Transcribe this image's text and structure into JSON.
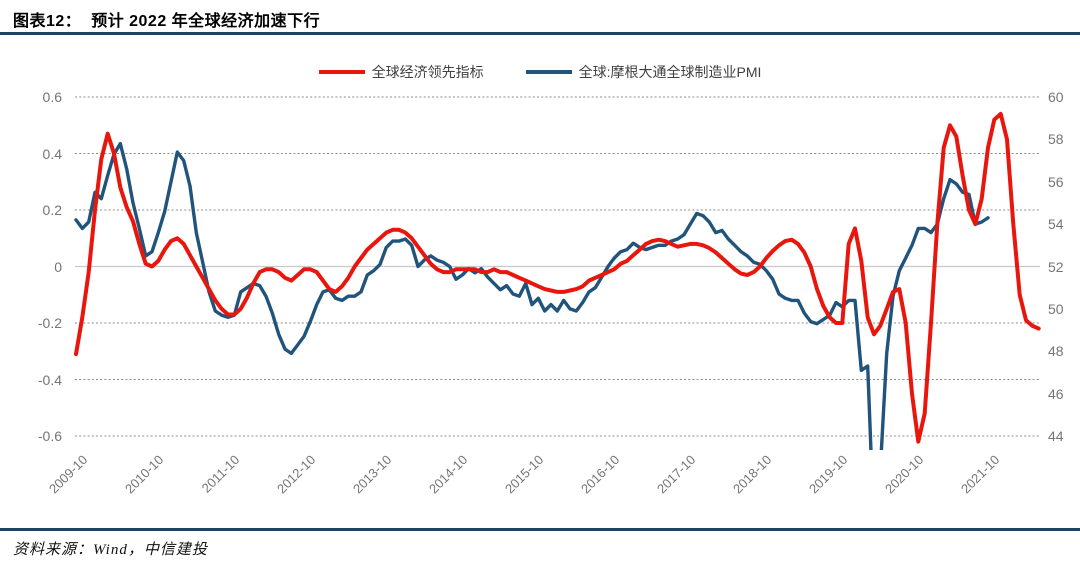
{
  "header": {
    "title": "图表12：  预计 2022 年全球经济加速下行"
  },
  "footer": {
    "source": "资料来源：Wind，中信建投"
  },
  "colors": {
    "rule_navy": "#1d4466",
    "red_series": "#e8160d",
    "blue_series": "#20547c",
    "grid_dashed": "#8c8c8c",
    "zero_line": "#c9c9c9",
    "tick_text": "#757575"
  },
  "chart_data": {
    "type": "line",
    "title": "预计 2022 年全球经济加速下行",
    "x_start": "2009-10",
    "x_frequency": "monthly",
    "x_tick_labels": [
      "2009-10",
      "2010-10",
      "2011-10",
      "2012-10",
      "2013-10",
      "2014-10",
      "2015-10",
      "2016-10",
      "2017-10",
      "2018-10",
      "2019-10",
      "2020-10",
      "2021-10"
    ],
    "left_axis": {
      "min": -0.6,
      "max": 0.6,
      "tick_labels": [
        "0.6",
        "0.4",
        "0.2",
        "0",
        "-0.2",
        "-0.4",
        "-0.6"
      ]
    },
    "right_axis": {
      "min": 44,
      "max": 60,
      "tick_labels": [
        "60",
        "58",
        "56",
        "54",
        "52",
        "50",
        "48",
        "46",
        "44"
      ]
    },
    "grid": "horizontal dashed, zero line solid",
    "legend_position": "top-center",
    "series": [
      {
        "name": "全球经济领先指标",
        "axis": "left",
        "color": "#e8160d",
        "values": [
          -0.31,
          -0.18,
          -0.02,
          0.2,
          0.38,
          0.47,
          0.4,
          0.28,
          0.21,
          0.16,
          0.08,
          0.01,
          0.0,
          0.02,
          0.06,
          0.09,
          0.1,
          0.08,
          0.04,
          0.0,
          -0.04,
          -0.08,
          -0.12,
          -0.15,
          -0.17,
          -0.17,
          -0.15,
          -0.11,
          -0.06,
          -0.02,
          -0.01,
          -0.01,
          -0.02,
          -0.04,
          -0.05,
          -0.03,
          -0.01,
          -0.01,
          -0.02,
          -0.05,
          -0.08,
          -0.09,
          -0.07,
          -0.04,
          0.0,
          0.03,
          0.06,
          0.08,
          0.1,
          0.12,
          0.13,
          0.13,
          0.12,
          0.1,
          0.07,
          0.04,
          0.01,
          -0.01,
          -0.02,
          -0.02,
          -0.01,
          -0.01,
          -0.01,
          -0.01,
          -0.02,
          -0.02,
          -0.01,
          -0.02,
          -0.02,
          -0.03,
          -0.04,
          -0.05,
          -0.06,
          -0.07,
          -0.08,
          -0.085,
          -0.09,
          -0.09,
          -0.085,
          -0.08,
          -0.07,
          -0.05,
          -0.04,
          -0.03,
          -0.02,
          -0.01,
          0.01,
          0.02,
          0.04,
          0.06,
          0.08,
          0.09,
          0.095,
          0.09,
          0.08,
          0.07,
          0.075,
          0.08,
          0.08,
          0.075,
          0.065,
          0.05,
          0.03,
          0.01,
          -0.01,
          -0.025,
          -0.03,
          -0.02,
          0.0,
          0.03,
          0.055,
          0.075,
          0.09,
          0.095,
          0.08,
          0.05,
          0.0,
          -0.08,
          -0.14,
          -0.18,
          -0.2,
          -0.2,
          0.08,
          0.135,
          0.02,
          -0.18,
          -0.24,
          -0.21,
          -0.15,
          -0.09,
          -0.08,
          -0.2,
          -0.45,
          -0.62,
          -0.52,
          -0.2,
          0.15,
          0.42,
          0.5,
          0.46,
          0.32,
          0.2,
          0.15,
          0.24,
          0.42,
          0.52,
          0.54,
          0.45,
          0.15,
          -0.1,
          -0.19,
          -0.21,
          -0.22
        ]
      },
      {
        "name": "全球:摩根大通全球制造业PMI",
        "axis": "right",
        "color": "#20547c",
        "values": [
          54.2,
          53.8,
          54.1,
          55.5,
          55.2,
          56.3,
          57.3,
          57.8,
          56.6,
          55.0,
          53.8,
          52.5,
          52.7,
          53.6,
          54.6,
          56.0,
          57.4,
          57.0,
          55.8,
          53.6,
          52.2,
          50.8,
          49.9,
          49.7,
          49.6,
          49.7,
          50.8,
          51.0,
          51.2,
          51.1,
          50.6,
          49.8,
          48.8,
          48.1,
          47.9,
          48.3,
          48.7,
          49.4,
          50.2,
          50.8,
          50.9,
          50.5,
          50.4,
          50.6,
          50.6,
          50.8,
          51.6,
          51.8,
          52.1,
          52.9,
          53.2,
          53.2,
          53.3,
          53.0,
          52.0,
          52.3,
          52.5,
          52.3,
          52.2,
          52.0,
          51.4,
          51.6,
          51.9,
          51.7,
          51.9,
          51.5,
          51.2,
          50.9,
          51.1,
          50.7,
          50.6,
          51.2,
          50.2,
          50.5,
          49.9,
          50.2,
          49.9,
          50.4,
          50.0,
          49.9,
          50.3,
          50.8,
          51.0,
          51.5,
          52.0,
          52.4,
          52.7,
          52.8,
          53.1,
          52.9,
          52.8,
          52.9,
          53.0,
          53.0,
          53.2,
          53.3,
          53.5,
          54.0,
          54.5,
          54.4,
          54.1,
          53.6,
          53.7,
          53.3,
          53.0,
          52.7,
          52.5,
          52.2,
          52.1,
          51.8,
          51.4,
          50.7,
          50.5,
          50.4,
          50.4,
          49.8,
          49.4,
          49.3,
          49.5,
          49.7,
          50.3,
          50.1,
          50.4,
          50.4,
          47.1,
          47.3,
          39.6,
          42.4,
          47.9,
          50.6,
          51.8,
          52.4,
          53.0,
          53.8,
          53.8,
          53.6,
          54.0,
          55.2,
          56.1,
          55.9,
          55.5,
          55.4,
          54.0,
          54.1,
          54.3
        ]
      }
    ]
  }
}
